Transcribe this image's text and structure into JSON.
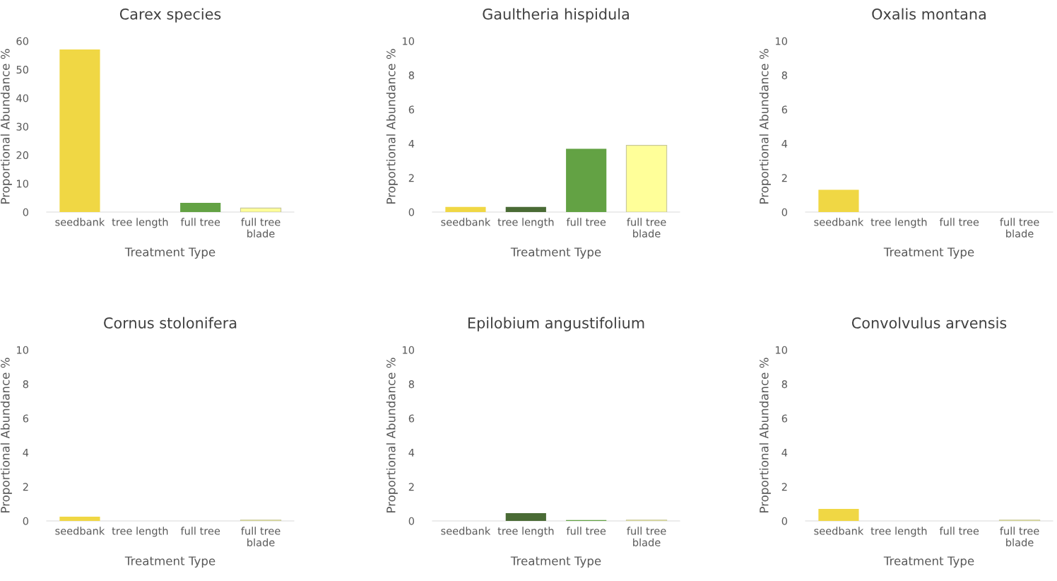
{
  "chart_data": [
    {
      "type": "bar",
      "title": "Carex species",
      "xlabel": "Treatment Type",
      "ylabel": "Proportional Abundance %",
      "categories": [
        "seedbank",
        "tree length",
        "full tree",
        "full tree\nblade"
      ],
      "values": [
        57,
        0,
        3.2,
        1.4
      ],
      "colors": [
        "#f0d744",
        "#4a6b35",
        "#63a244",
        "#ffff99"
      ],
      "ylim": [
        0,
        60
      ],
      "yticks": [
        0,
        10,
        20,
        30,
        40,
        50,
        60
      ]
    },
    {
      "type": "bar",
      "title": "Gaultheria hispidula",
      "xlabel": "Treatment Type",
      "ylabel": "Proportional Abundance %",
      "categories": [
        "seedbank",
        "tree length",
        "full tree",
        "full tree\nblade"
      ],
      "values": [
        0.3,
        0.3,
        3.7,
        3.9
      ],
      "colors": [
        "#f0d744",
        "#4a6b35",
        "#63a244",
        "#ffff99"
      ],
      "ylim": [
        0,
        10
      ],
      "yticks": [
        0,
        2,
        4,
        6,
        8,
        10
      ]
    },
    {
      "type": "bar",
      "title": "Oxalis montana",
      "xlabel": "Treatment Type",
      "ylabel": "Proportional Abundance %",
      "categories": [
        "seedbank",
        "tree length",
        "full tree",
        "full tree\nblade"
      ],
      "values": [
        1.3,
        0,
        0,
        0
      ],
      "colors": [
        "#f0d744",
        "#4a6b35",
        "#63a244",
        "#ffff99"
      ],
      "ylim": [
        0,
        10
      ],
      "yticks": [
        0,
        2,
        4,
        6,
        8,
        10
      ]
    },
    {
      "type": "bar",
      "title": "Cornus stolonifera",
      "xlabel": "Treatment Type",
      "ylabel": "Proportional Abundance %",
      "categories": [
        "seedbank",
        "tree length",
        "full tree",
        "full tree\nblade"
      ],
      "values": [
        0.25,
        0,
        0,
        0.05
      ],
      "colors": [
        "#f0d744",
        "#4a6b35",
        "#63a244",
        "#ffff99"
      ],
      "ylim": [
        0,
        10
      ],
      "yticks": [
        0,
        2,
        4,
        6,
        8,
        10
      ]
    },
    {
      "type": "bar",
      "title": "Epilobium angustifolium",
      "xlabel": "Treatment Type",
      "ylabel": "Proportional Abundance %",
      "categories": [
        "seedbank",
        "tree length",
        "full tree",
        "full tree\nblade"
      ],
      "values": [
        0,
        0.45,
        0.05,
        0.05
      ],
      "colors": [
        "#f0d744",
        "#4a6b35",
        "#63a244",
        "#ffff99"
      ],
      "ylim": [
        0,
        10
      ],
      "yticks": [
        0,
        2,
        4,
        6,
        8,
        10
      ]
    },
    {
      "type": "bar",
      "title": "Convolvulus arvensis",
      "xlabel": "Treatment Type",
      "ylabel": "Proportional Abundance %",
      "categories": [
        "seedbank",
        "tree length",
        "full tree",
        "full tree\nblade"
      ],
      "values": [
        0.7,
        0,
        0,
        0.05
      ],
      "colors": [
        "#f0d744",
        "#4a6b35",
        "#63a244",
        "#ffff99"
      ],
      "ylim": [
        0,
        10
      ],
      "yticks": [
        0,
        2,
        4,
        6,
        8,
        10
      ]
    }
  ]
}
